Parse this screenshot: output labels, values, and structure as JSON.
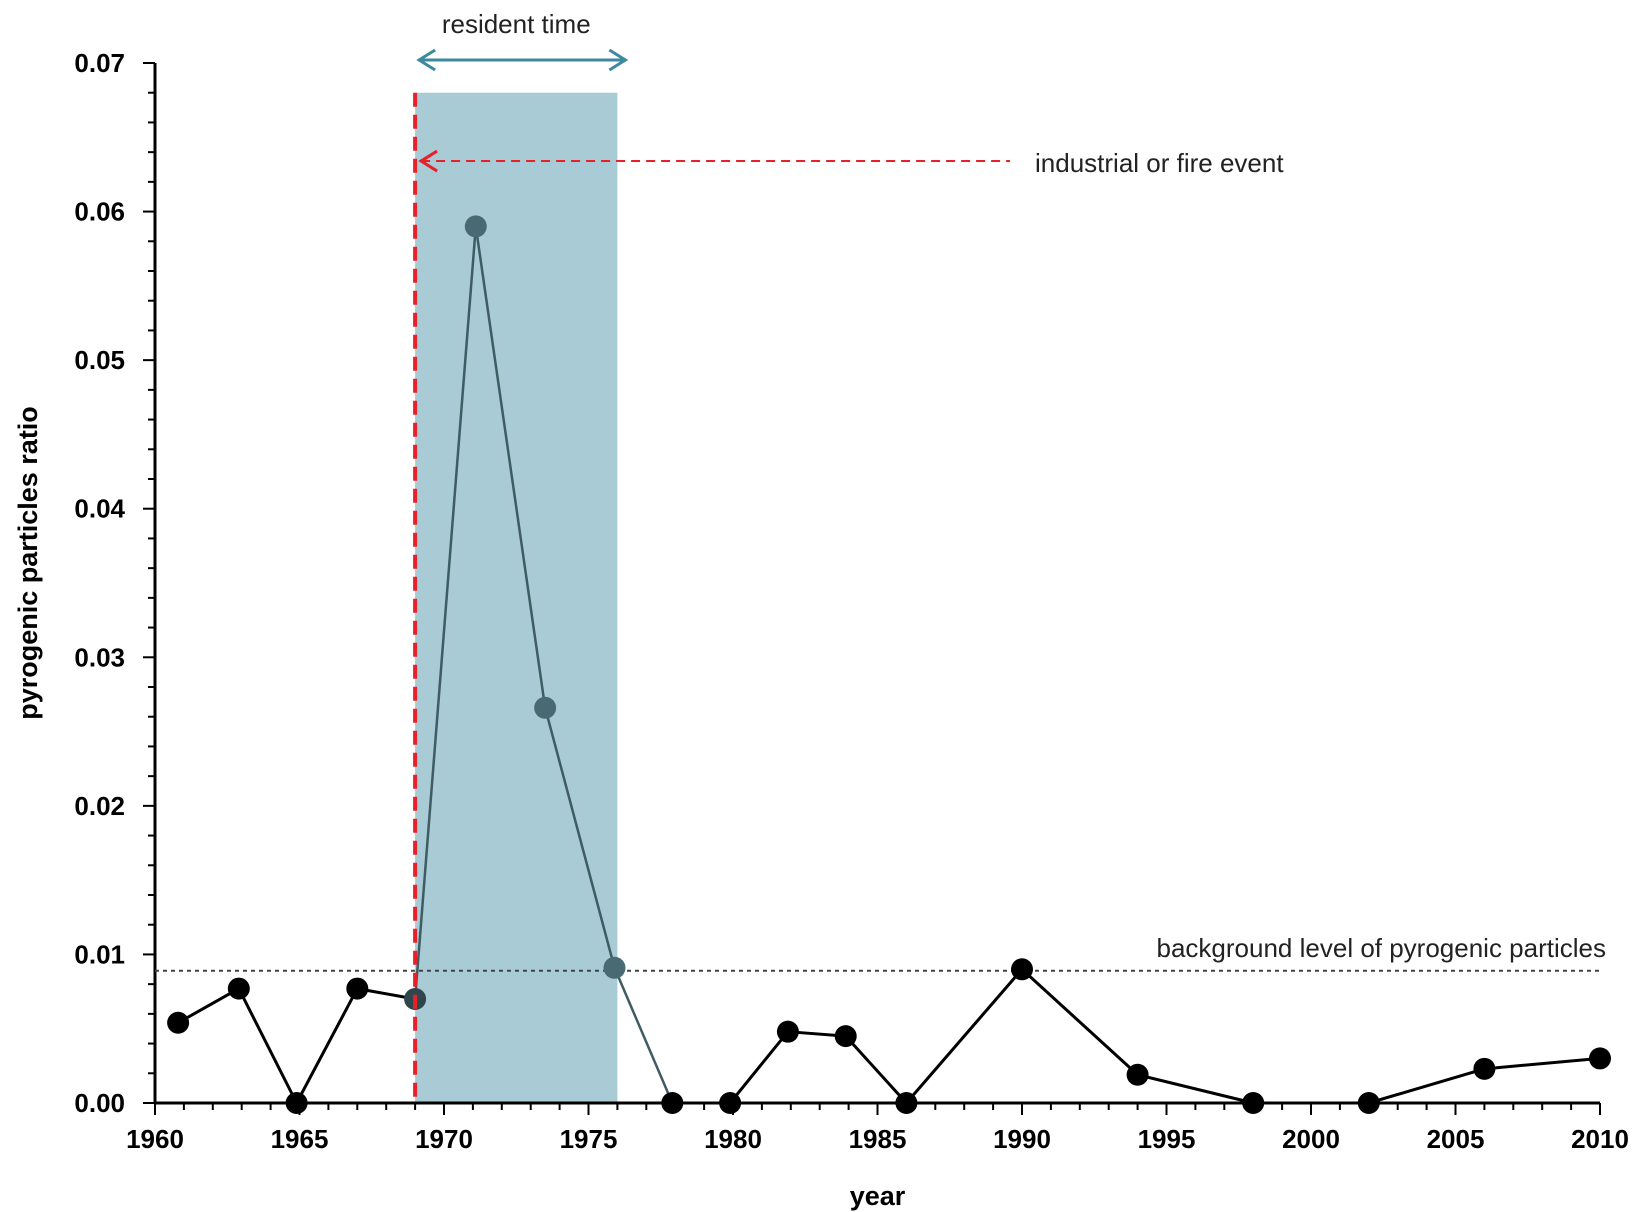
{
  "chart_data": {
    "type": "line",
    "title": "",
    "xlabel": "year",
    "ylabel": "pyrogenic particles  ratio",
    "xlim": [
      1960,
      2010
    ],
    "ylim": [
      0,
      0.07
    ],
    "x_ticks": [
      "1960",
      "1965",
      "1970",
      "1975",
      "1980",
      "1985",
      "1990",
      "1995",
      "2000",
      "2005",
      "2010"
    ],
    "y_ticks": [
      "0.00",
      "0.01",
      "0.02",
      "0.03",
      "0.04",
      "0.05",
      "0.06",
      "0.07"
    ],
    "grid": false,
    "legend": "none",
    "series": [
      {
        "color": "#000000",
        "points": [
          {
            "x": 1960.8,
            "y": 0.0054
          },
          {
            "x": 1962.9,
            "y": 0.0077
          },
          {
            "x": 1964.9,
            "y": 0.0
          },
          {
            "x": 1967.0,
            "y": 0.0077
          },
          {
            "x": 1969.0,
            "y": 0.007
          },
          {
            "x": 1971.1,
            "y": 0.059
          },
          {
            "x": 1973.5,
            "y": 0.0266
          },
          {
            "x": 1975.9,
            "y": 0.0091
          },
          {
            "x": 1977.9,
            "y": 0.0
          },
          {
            "x": 1979.9,
            "y": 0.0
          },
          {
            "x": 1981.9,
            "y": 0.0048
          },
          {
            "x": 1983.9,
            "y": 0.0045
          },
          {
            "x": 1986.0,
            "y": 0.0
          },
          {
            "x": 1990.0,
            "y": 0.009
          },
          {
            "x": 1994.0,
            "y": 0.0019
          },
          {
            "x": 1998.0,
            "y": 0.0
          },
          {
            "x": 2002.0,
            "y": 0.0
          },
          {
            "x": 2006.0,
            "y": 0.0023
          },
          {
            "x": 2010.0,
            "y": 0.003
          }
        ]
      }
    ],
    "annotations": {
      "resident_time": {
        "text": "resident time",
        "x_start": 1969,
        "x_end": 1976,
        "color": "#3d8aa0"
      },
      "shaded_region": {
        "x_start": 1969,
        "x_end": 1976,
        "y_top": 0.068,
        "color": "#a9cbd5"
      },
      "event_line": {
        "x": 1969,
        "color": "#e8202a"
      },
      "event_label": {
        "text": "industrial or fire event",
        "y": 0.0634
      },
      "background_level": {
        "text": "background level of pyrogenic particles",
        "y": 0.0089
      }
    }
  }
}
